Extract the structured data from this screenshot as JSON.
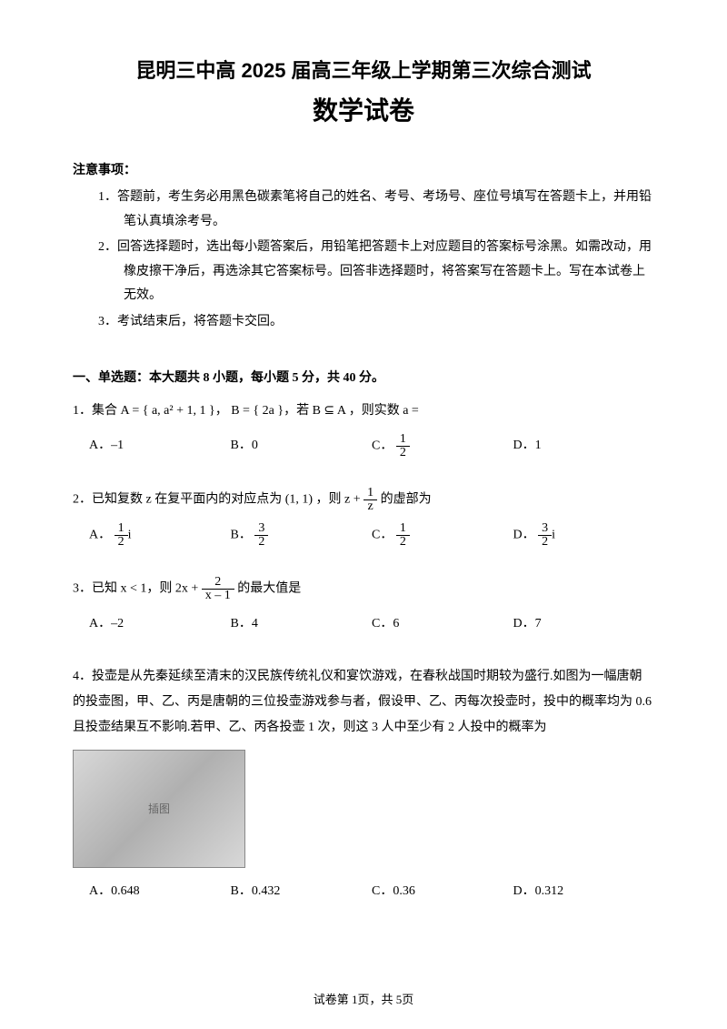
{
  "title": {
    "main": "昆明三中高 2025 届高三年级上学期第三次综合测试",
    "sub": "数学试卷"
  },
  "notice": {
    "header": "注意事项：",
    "items": [
      "1．答题前，考生务必用黑色碳素笔将自己的姓名、考号、考场号、座位号填写在答题卡上，并用铅笔认真填涂考号。",
      "2．回答选择题时，选出每小题答案后，用铅笔把答题卡上对应题目的答案标号涂黑。如需改动，用橡皮擦干净后，再选涂其它答案标号。回答非选择题时，将答案写在答题卡上。写在本试卷上无效。",
      "3．考试结束后，将答题卡交回。"
    ]
  },
  "section": {
    "header": "一、单选题：本大题共 8 小题，每小题 5 分，共 40 分。"
  },
  "q1": {
    "stem_prefix": "1．集合 A = { a, a² + 1, 1 }，  B = { 2a }，若 B ⊆ A ，则实数 a =",
    "choices": {
      "A": "A．–1",
      "B": "B．0",
      "C_label": "C．",
      "D": "D．1"
    },
    "frac_c": {
      "num": "1",
      "den": "2"
    }
  },
  "q2": {
    "stem_prefix": "2．已知复数 z 在复平面内的对应点为 (1, 1) ，则 z + ",
    "stem_suffix": " 的虚部为",
    "frac_stem": {
      "num": "1",
      "den": "z"
    },
    "choices": {
      "A_label": "A．",
      "A_num": "1",
      "A_den": "2",
      "A_suffix": "i",
      "B_label": "B．",
      "B_num": "3",
      "B_den": "2",
      "C_label": "C．",
      "C_num": "1",
      "C_den": "2",
      "D_label": "D．",
      "D_num": "3",
      "D_den": "2",
      "D_suffix": "i"
    }
  },
  "q3": {
    "stem_prefix": "3．已知 x < 1，则 2x + ",
    "stem_suffix": " 的最大值是",
    "frac_stem": {
      "num": "2",
      "den": "x – 1"
    },
    "choices": {
      "A": "A．–2",
      "B": "B．4",
      "C": "C．6",
      "D": "D．7"
    }
  },
  "q4": {
    "stem": "4．投壶是从先秦延续至清末的汉民族传统礼仪和宴饮游戏，在春秋战国时期较为盛行.如图为一幅唐朝的投壶图，甲、乙、丙是唐朝的三位投壶游戏参与者，假设甲、乙、丙每次投壶时，投中的概率均为 0.6 且投壶结果互不影响.若甲、乙、丙各投壶 1 次，则这 3 人中至少有 2 人投中的概率为",
    "choices": {
      "A": "A．0.648",
      "B": "B．0.432",
      "C": "C．0.36",
      "D": "D．0.312"
    }
  },
  "footer": "试卷第 1页，共 5页"
}
